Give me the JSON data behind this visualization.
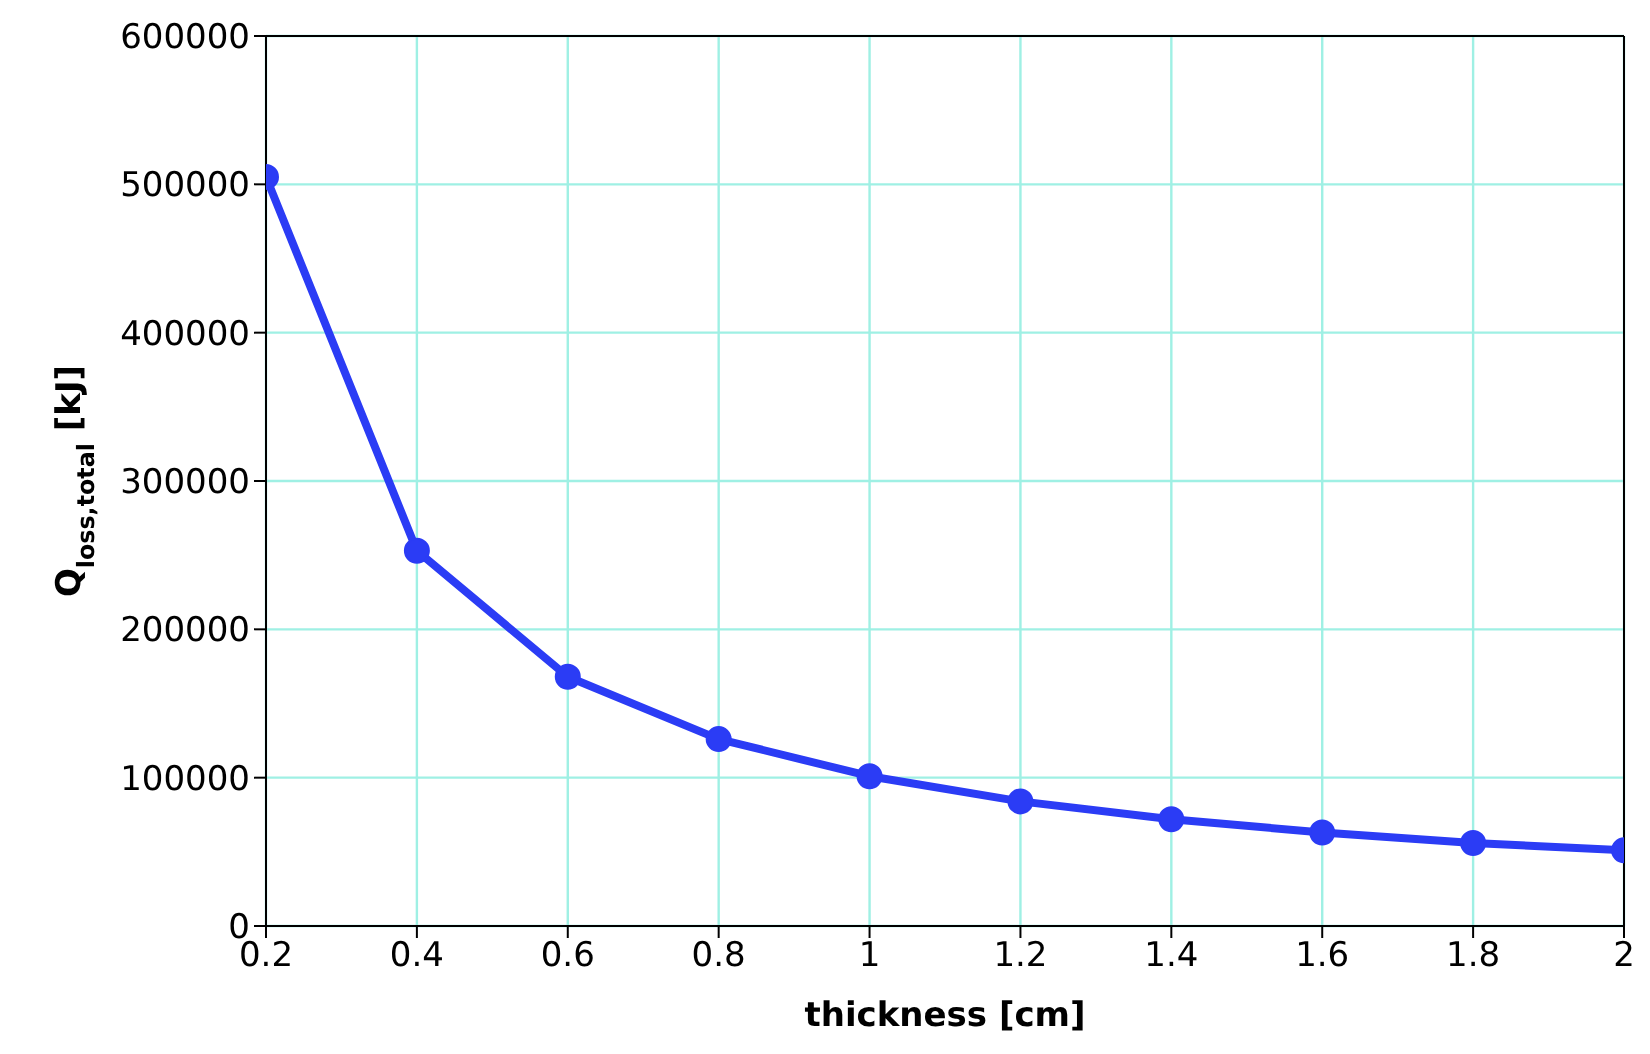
{
  "chart_data": {
    "type": "line",
    "xlabel": "thickness [cm]",
    "ylabel": "Q$_{loss,total}$ [kJ]",
    "x": [
      0.2,
      0.4,
      0.6,
      0.8,
      1,
      1.2,
      1.4,
      1.6,
      1.8,
      2
    ],
    "series": [
      {
        "color": "#2b3cf5",
        "values": [
          505000,
          253000,
          168000,
          126000,
          101000,
          84000,
          72000,
          63000,
          56000,
          51000
        ]
      }
    ],
    "xlim": [
      0.2,
      2
    ],
    "xticks": [
      0.2,
      0.4,
      0.6,
      0.8,
      1,
      1.2,
      1.4,
      1.6,
      1.8,
      2
    ],
    "ylim": [
      0,
      600000
    ],
    "yticks": [
      0,
      100000,
      200000,
      300000,
      400000,
      500000,
      600000
    ],
    "grid": true,
    "marker": "circle",
    "line_style": "solid",
    "legend": false
  }
}
